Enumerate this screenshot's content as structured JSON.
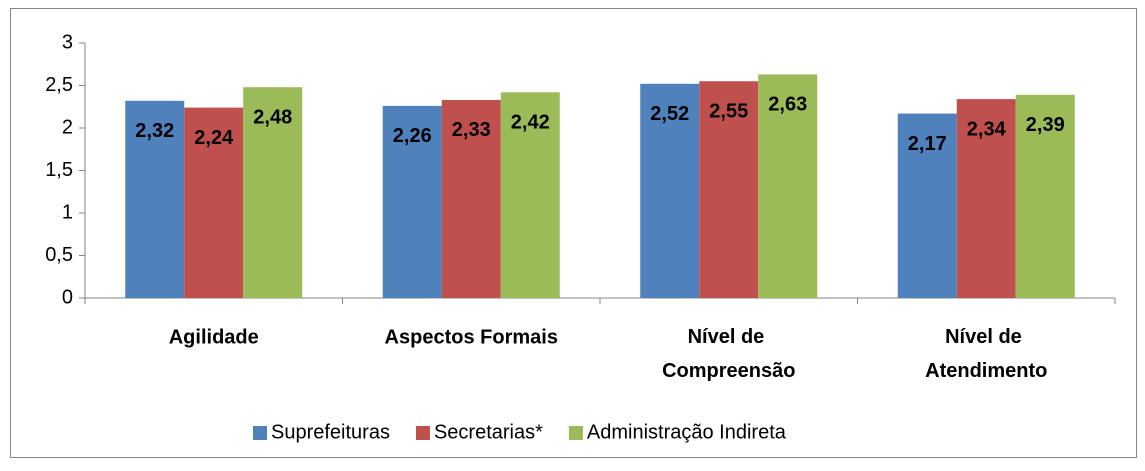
{
  "chart_data": {
    "type": "bar",
    "categories": [
      "Agilidade",
      "Aspectos Formais",
      "Nível de Compreensão",
      "Nível de Atendimento"
    ],
    "series": [
      {
        "name": "Suprefeituras",
        "color": "#4f81bd",
        "values": [
          2.32,
          2.26,
          2.52,
          2.17
        ],
        "value_labels": [
          "2,32",
          "2,26",
          "2,52",
          "2,17"
        ]
      },
      {
        "name": "Secretarias*",
        "color": "#c0504d",
        "values": [
          2.24,
          2.33,
          2.55,
          2.34
        ],
        "value_labels": [
          "2,24",
          "2,33",
          "2,55",
          "2,34"
        ]
      },
      {
        "name": "Administração Indireta",
        "color": "#9bbb59",
        "values": [
          2.48,
          2.42,
          2.63,
          2.39
        ],
        "value_labels": [
          "2,48",
          "2,42",
          "2,63",
          "2,39"
        ]
      }
    ],
    "ylim": [
      0,
      3
    ],
    "yticks": [
      0,
      {
        "value": 0.5,
        "label": "0,5"
      },
      1,
      {
        "value": 1.5,
        "label": "1,5"
      },
      2,
      {
        "value": 2.5,
        "label": "2,5"
      },
      3
    ],
    "grid": false,
    "legend": "bottom"
  }
}
